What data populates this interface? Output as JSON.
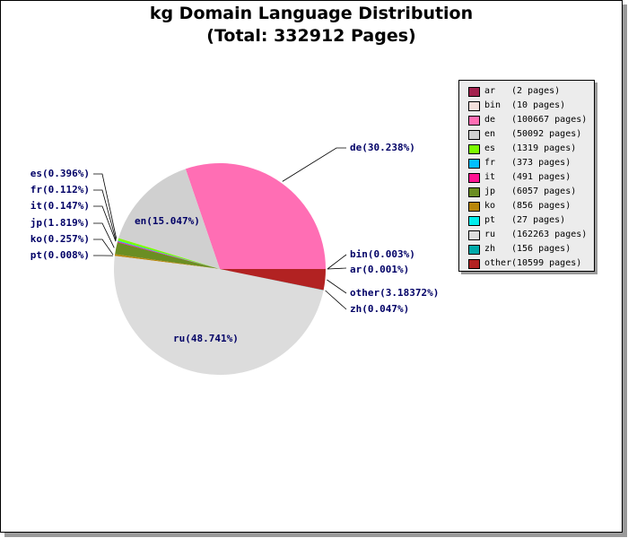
{
  "chart_data": {
    "type": "pie",
    "title": "kg Domain Language Distribution",
    "subtitle": "(Total: 332912 Pages)",
    "slices": [
      {
        "code": "ar",
        "pages_text": "(2 pages)",
        "pages": 2,
        "label": "ar(0.001%)",
        "color": "#a3224e"
      },
      {
        "code": "bin",
        "pages_text": "(10 pages)",
        "pages": 10,
        "label": "bin(0.003%)",
        "color": "#f3e0dc"
      },
      {
        "code": "de",
        "pages_text": "(100667 pages)",
        "pages": 100667,
        "label": "de(30.238%)",
        "color": "#ff6eb4"
      },
      {
        "code": "en",
        "pages_text": "(50092 pages)",
        "pages": 50092,
        "label": "en(15.047%)",
        "color": "#d0d0d0"
      },
      {
        "code": "es",
        "pages_text": "(1319 pages)",
        "pages": 1319,
        "label": "es(0.396%)",
        "color": "#7cfc00"
      },
      {
        "code": "fr",
        "pages_text": "(373 pages)",
        "pages": 373,
        "label": "fr(0.112%)",
        "color": "#00bfff"
      },
      {
        "code": "it",
        "pages_text": "(491 pages)",
        "pages": 491,
        "label": "it(0.147%)",
        "color": "#ff1493"
      },
      {
        "code": "jp",
        "pages_text": "(6057 pages)",
        "pages": 6057,
        "label": "jp(1.819%)",
        "color": "#6b8e23"
      },
      {
        "code": "ko",
        "pages_text": "(856 pages)",
        "pages": 856,
        "label": "ko(0.257%)",
        "color": "#b8860b"
      },
      {
        "code": "pt",
        "pages_text": "(27 pages)",
        "pages": 27,
        "label": "pt(0.008%)",
        "color": "#00eeee"
      },
      {
        "code": "ru",
        "pages_text": "(162263 pages)",
        "pages": 162263,
        "label": "ru(48.741%)",
        "color": "#dcdcdc"
      },
      {
        "code": "zh",
        "pages_text": "(156 pages)",
        "pages": 156,
        "label": "zh(0.047%)",
        "color": "#00aaaa"
      },
      {
        "code": "other",
        "pages_text": "(10599 pages)",
        "pages": 10599,
        "label": "other(3.18372%)",
        "color": "#b22222"
      }
    ],
    "legend": "right-top"
  }
}
